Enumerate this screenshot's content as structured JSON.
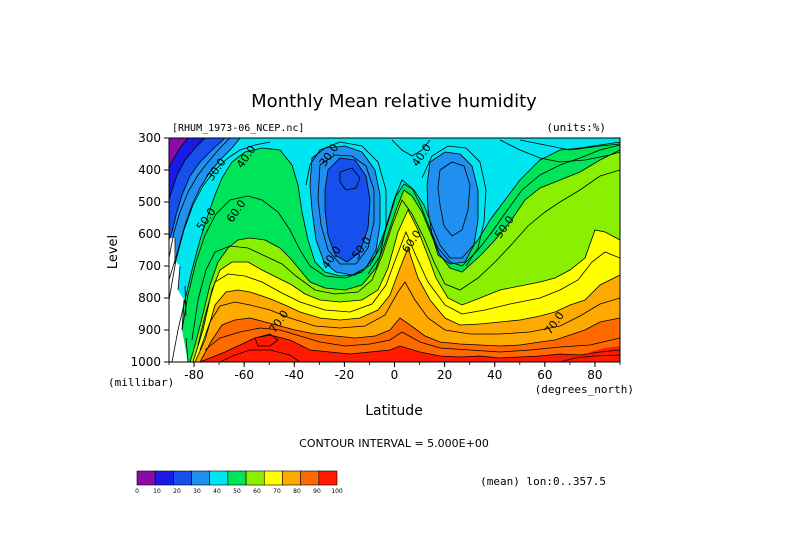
{
  "chart_data": {
    "type": "contour",
    "title": "Monthly Mean relative humidity",
    "source_label": "[RHUM_1973-06_NCEP.nc]",
    "units_label": "(units:%)",
    "ylabel": "Level",
    "yunit": "(millibar)",
    "xlabel": "Latitude",
    "xunit": "(degrees_north)",
    "xlim": [
      -90,
      90
    ],
    "ylim": [
      1000,
      300
    ],
    "x_ticks": [
      -80,
      -60,
      -40,
      -20,
      0,
      20,
      40,
      60,
      80
    ],
    "y_ticks": [
      300,
      400,
      500,
      600,
      700,
      800,
      900,
      1000
    ],
    "contour_interval_text": "CONTOUR INTERVAL = 5.000E+00",
    "footer_text": "(mean) lon:0..357.5",
    "contour_labels": [
      {
        "text": "30.0",
        "lat": -70,
        "lev": 405
      },
      {
        "text": "40.0",
        "lat": -58,
        "lev": 365
      },
      {
        "text": "50.0",
        "lat": -74,
        "lev": 560
      },
      {
        "text": "60.0",
        "lat": -62,
        "lev": 535
      },
      {
        "text": "30.0",
        "lat": -25,
        "lev": 360
      },
      {
        "text": "40.0",
        "lat": 12,
        "lev": 360
      },
      {
        "text": "40.0",
        "lat": -24,
        "lev": 680
      },
      {
        "text": "50.0",
        "lat": -12,
        "lev": 650
      },
      {
        "text": "60.0",
        "lat": 8,
        "lev": 630
      },
      {
        "text": "50.0",
        "lat": 45,
        "lev": 585
      },
      {
        "text": "70.0",
        "lat": -45,
        "lev": 880
      },
      {
        "text": "70.0",
        "lat": 65,
        "lev": 885
      }
    ],
    "colorbar": {
      "ticks": [
        0,
        10,
        20,
        30,
        40,
        50,
        60,
        70,
        80,
        90,
        100
      ],
      "colors": [
        "#8a0ca8",
        "#1a1ae6",
        "#1550ec",
        "#1f8ff0",
        "#00e6f0",
        "#00e45a",
        "#88f000",
        "#ffff00",
        "#ffaa00",
        "#ff6a00",
        "#ff1a00"
      ]
    }
  }
}
